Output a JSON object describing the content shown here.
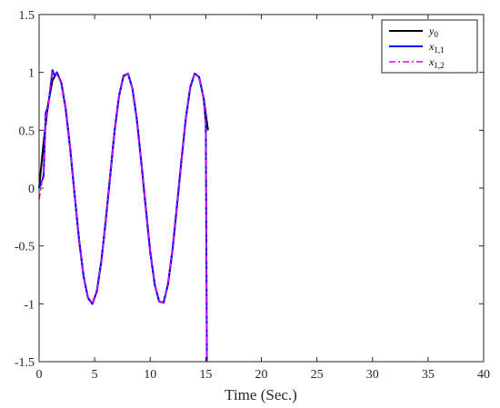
{
  "chart_data": {
    "type": "line",
    "title": "",
    "xlabel": "Time (Sec.)",
    "ylabel": "",
    "xlim": [
      0,
      40
    ],
    "ylim": [
      -1.5,
      1.5
    ],
    "x_ticks": [
      "0",
      "5",
      "10",
      "15",
      "20",
      "25",
      "30",
      "35",
      "40"
    ],
    "y_ticks": [
      "1.5",
      "1",
      "0.5",
      "0",
      "-0.5",
      "-1",
      "-1.5"
    ],
    "grid": false,
    "legend_position": "top-right",
    "series": [
      {
        "name": "y₀",
        "legend_main": "y",
        "legend_sub": "0",
        "color": "#000000",
        "style": "solid",
        "x": [
          0.0,
          0.4,
          0.8,
          1.2,
          1.6,
          2.0,
          2.4,
          2.8,
          3.2,
          3.6,
          4.0,
          4.4,
          4.8,
          5.2,
          5.6,
          6.0,
          6.4,
          6.8,
          7.2,
          7.6,
          8.0,
          8.4,
          8.8,
          9.2,
          9.6,
          10.0,
          10.4,
          10.8,
          11.2,
          11.6,
          12.0,
          12.4,
          12.8,
          13.2,
          13.6,
          14.0,
          14.4,
          14.8,
          15.2
        ],
        "y": [
          0.0,
          0.39,
          0.72,
          0.93,
          1.0,
          0.91,
          0.68,
          0.34,
          -0.06,
          -0.45,
          -0.76,
          -0.95,
          -1.0,
          -0.89,
          -0.63,
          -0.28,
          0.11,
          0.5,
          0.8,
          0.97,
          0.99,
          0.86,
          0.59,
          0.22,
          -0.17,
          -0.55,
          -0.83,
          -0.98,
          -0.99,
          -0.83,
          -0.54,
          -0.16,
          0.23,
          0.6,
          0.87,
          0.99,
          0.96,
          0.78,
          0.5
        ]
      },
      {
        "name": "x₁,₁",
        "legend_main": "x",
        "legend_sub": "1,1",
        "color": "#0000ff",
        "style": "solid",
        "x": [
          0.0,
          0.2,
          0.4,
          0.6,
          0.8,
          1.0,
          1.2,
          1.4,
          1.6,
          2.0,
          2.4,
          2.8,
          3.2,
          3.6,
          4.0,
          4.4,
          4.8,
          5.2,
          5.6,
          6.0,
          6.4,
          6.8,
          7.2,
          7.6,
          8.0,
          8.4,
          8.8,
          9.2,
          9.6,
          10.0,
          10.4,
          10.8,
          11.2,
          11.6,
          12.0,
          12.4,
          12.8,
          13.2,
          13.6,
          14.0,
          14.4,
          14.8,
          15.0,
          15.05,
          15.1
        ],
        "y": [
          0.0,
          0.05,
          0.1,
          0.65,
          0.7,
          0.85,
          1.02,
          0.97,
          1.0,
          0.91,
          0.68,
          0.34,
          -0.06,
          -0.45,
          -0.76,
          -0.95,
          -1.0,
          -0.89,
          -0.63,
          -0.28,
          0.11,
          0.5,
          0.8,
          0.97,
          0.99,
          0.86,
          0.59,
          0.22,
          -0.17,
          -0.55,
          -0.83,
          -0.98,
          -0.99,
          -0.83,
          -0.54,
          -0.16,
          0.23,
          0.6,
          0.87,
          0.99,
          0.96,
          0.78,
          0.55,
          -0.5,
          -1.5
        ]
      },
      {
        "name": "x₁,₂",
        "legend_main": "x",
        "legend_sub": "1,2",
        "color": "#e600e6",
        "style": "dashdot",
        "x": [
          0.0,
          0.2,
          0.4,
          0.6,
          0.8,
          1.0,
          1.2,
          1.4,
          1.6,
          2.0,
          2.4,
          2.8,
          3.2,
          3.6,
          4.0,
          4.4,
          4.8,
          5.2,
          5.6,
          6.0,
          6.4,
          6.8,
          7.2,
          7.6,
          8.0,
          8.4,
          8.8,
          9.2,
          9.6,
          10.0,
          10.4,
          10.8,
          11.2,
          11.6,
          12.0,
          12.4,
          12.8,
          13.2,
          13.6,
          14.0,
          14.4,
          14.8,
          15.0,
          15.05,
          15.1
        ],
        "y": [
          -0.1,
          0.02,
          0.15,
          0.6,
          0.68,
          0.88,
          1.0,
          0.99,
          0.99,
          0.91,
          0.68,
          0.34,
          -0.06,
          -0.45,
          -0.76,
          -0.95,
          -1.0,
          -0.89,
          -0.63,
          -0.28,
          0.11,
          0.5,
          0.8,
          0.97,
          0.99,
          0.86,
          0.59,
          0.22,
          -0.17,
          -0.55,
          -0.83,
          -0.98,
          -0.99,
          -0.83,
          -0.54,
          -0.16,
          0.23,
          0.6,
          0.87,
          0.99,
          0.96,
          0.78,
          0.55,
          -0.4,
          -1.5
        ]
      }
    ]
  }
}
